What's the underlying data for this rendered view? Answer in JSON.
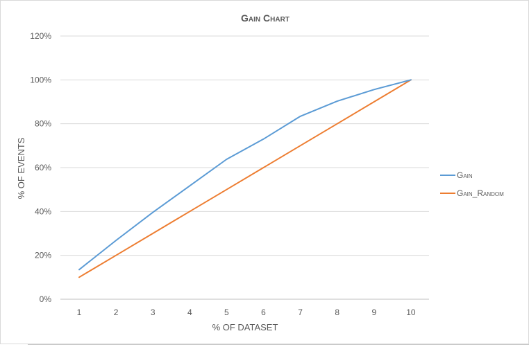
{
  "chart_data": {
    "type": "line",
    "title": "Gain Chart",
    "xlabel": "% OF DATASET",
    "ylabel": "% OF EVENTS",
    "categories": [
      "1",
      "2",
      "3",
      "4",
      "5",
      "6",
      "7",
      "8",
      "9",
      "10"
    ],
    "ylim": [
      0,
      120
    ],
    "yticks": [
      "0%",
      "20%",
      "40%",
      "60%",
      "80%",
      "100%",
      "120%"
    ],
    "ytick_values": [
      0,
      20,
      40,
      60,
      80,
      100,
      120
    ],
    "grid": true,
    "legend_position": "right",
    "series": [
      {
        "name": "Gain",
        "color": "#5b9bd5",
        "values": [
          13.5,
          26.8,
          39.6,
          51.7,
          63.8,
          73.0,
          83.4,
          90.3,
          95.6,
          100
        ]
      },
      {
        "name": "Gain_Random",
        "color": "#ed7d31",
        "values": [
          10,
          20,
          30,
          40,
          50,
          60,
          70,
          80,
          90,
          100
        ]
      }
    ]
  }
}
